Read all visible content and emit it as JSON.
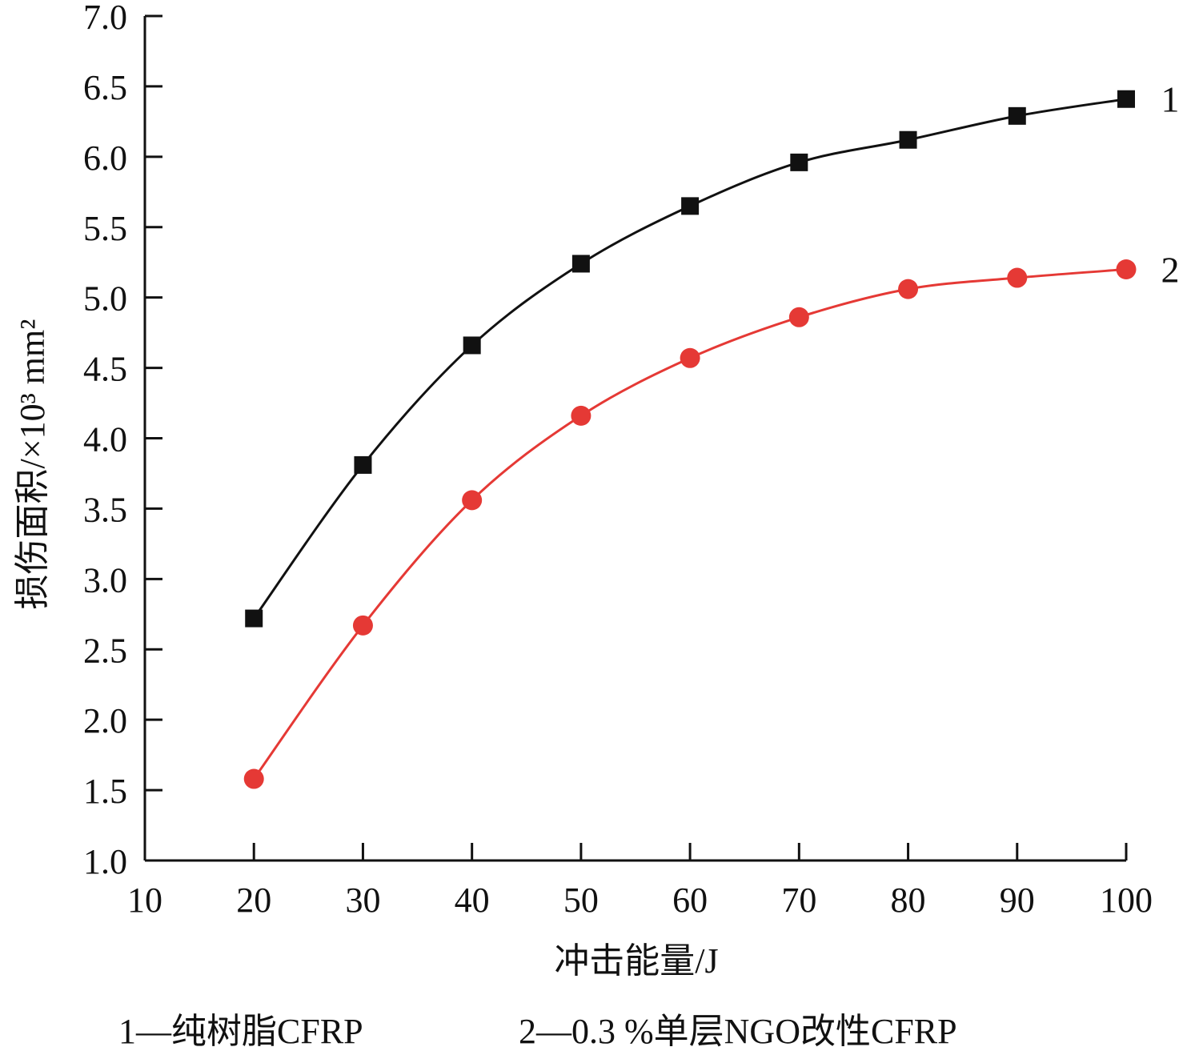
{
  "chart_data": {
    "type": "line",
    "xlabel": "冲击能量/J",
    "ylabel": "损伤面积/×10³ mm²",
    "xlim": [
      10,
      100
    ],
    "ylim": [
      1.0,
      7.0
    ],
    "x_ticks": [
      "10",
      "20",
      "30",
      "40",
      "50",
      "60",
      "70",
      "80",
      "90",
      "100"
    ],
    "y_ticks": [
      "1.0",
      "1.5",
      "2.0",
      "2.5",
      "3.0",
      "3.5",
      "4.0",
      "4.5",
      "5.0",
      "5.5",
      "6.0",
      "6.5",
      "7.0"
    ],
    "grid": false,
    "x": [
      20,
      30,
      40,
      50,
      60,
      70,
      80,
      90,
      100
    ],
    "series": [
      {
        "label": "1",
        "marker": "square",
        "color": "#111111",
        "values": [
          2.72,
          3.81,
          4.66,
          5.24,
          5.65,
          5.96,
          6.12,
          6.29,
          6.41
        ]
      },
      {
        "label": "2",
        "marker": "circle",
        "color": "#e53935",
        "values": [
          1.58,
          2.67,
          3.56,
          4.16,
          4.57,
          4.86,
          5.06,
          5.14,
          5.2
        ]
      }
    ],
    "legend": [
      "1—纯树脂CFRP",
      "2—0.3 %单层NGO改性CFRP"
    ]
  }
}
